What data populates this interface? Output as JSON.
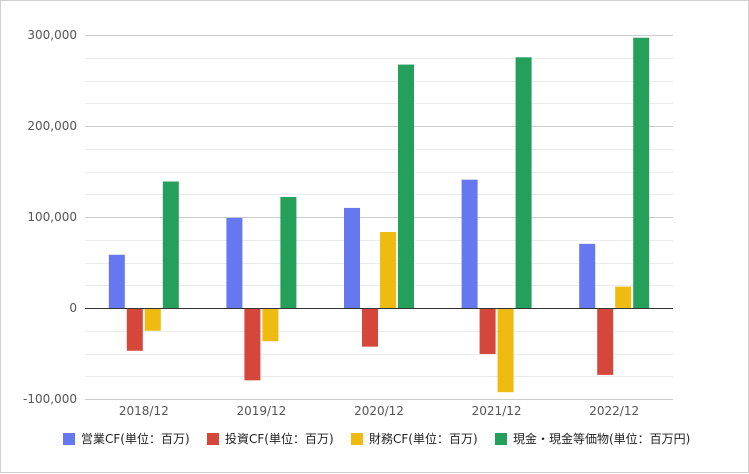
{
  "chart_data": {
    "type": "bar",
    "categories": [
      "2018/12",
      "2019/12",
      "2020/12",
      "2021/12",
      "2022/12"
    ],
    "series": [
      {
        "name": "営業CF(単位：百万)",
        "color": "#6678f0",
        "values": [
          58500,
          99000,
          110000,
          141000,
          70500
        ]
      },
      {
        "name": "投資CF(単位：百万)",
        "color": "#d4473a",
        "values": [
          -47000,
          -79500,
          -42500,
          -50500,
          -73500
        ]
      },
      {
        "name": "財務CF(単位：百万)",
        "color": "#f0bb10",
        "values": [
          -25000,
          -36500,
          83500,
          -92500,
          23500
        ]
      },
      {
        "name": "現金・現金等価物(単位：百万円)",
        "color": "#24a05a",
        "values": [
          139000,
          122000,
          267500,
          275500,
          297000
        ]
      }
    ],
    "ylim": [
      -100000,
      300000
    ],
    "yticks": [
      "-100,000",
      "0",
      "100,000",
      "200,000",
      "300,000"
    ],
    "ytick_values": [
      -100000,
      0,
      100000,
      200000,
      300000
    ],
    "grid": true,
    "minor_gridlines": true,
    "legend_position": "bottom"
  }
}
